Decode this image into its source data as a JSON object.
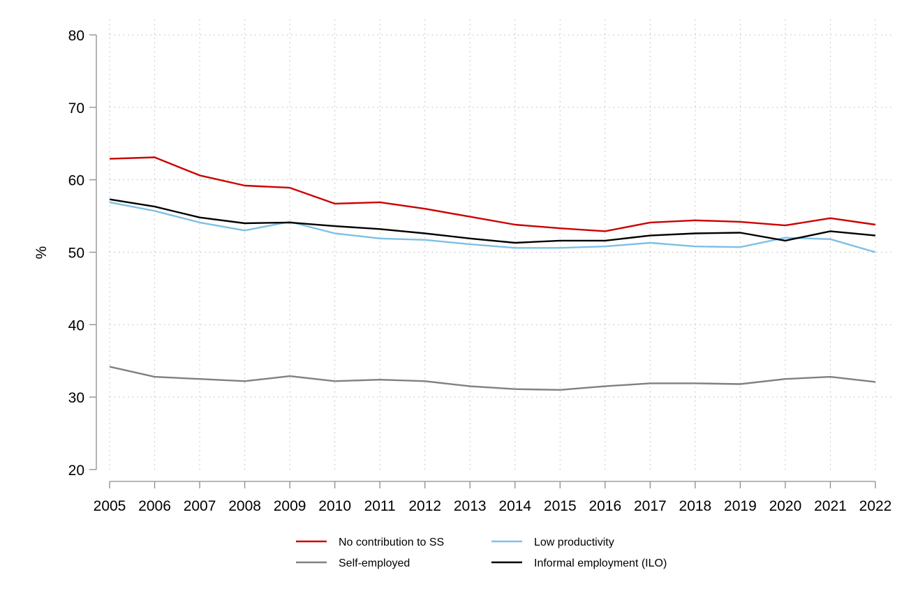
{
  "chart_data": {
    "type": "line",
    "title": "",
    "xlabel": "",
    "ylabel": "%",
    "ylim": [
      20,
      80
    ],
    "yticks": [
      20,
      30,
      40,
      50,
      60,
      70,
      80
    ],
    "grid": true,
    "legend_position": "bottom",
    "x": [
      "2005",
      "2006",
      "2007",
      "2008",
      "2009",
      "2010",
      "2011",
      "2012",
      "2013",
      "2014",
      "2015",
      "2016",
      "2017",
      "2018",
      "2019",
      "2020",
      "2021",
      "2022"
    ],
    "series": [
      {
        "name": "No contribution to SS",
        "color": "#cc0000",
        "values": [
          62.9,
          63.1,
          60.6,
          59.2,
          58.9,
          56.7,
          56.9,
          56.0,
          54.9,
          53.8,
          53.3,
          52.9,
          54.1,
          54.4,
          54.2,
          53.7,
          54.7,
          53.8
        ]
      },
      {
        "name": "Low productivity",
        "color": "#7fbfe6",
        "values": [
          56.9,
          55.7,
          54.1,
          53.0,
          54.2,
          52.6,
          51.9,
          51.7,
          51.1,
          50.6,
          50.6,
          50.8,
          51.3,
          50.8,
          50.7,
          52.0,
          51.8,
          50.0
        ]
      },
      {
        "name": "Self-employed",
        "color": "#808080",
        "values": [
          34.2,
          32.8,
          32.5,
          32.2,
          32.9,
          32.2,
          32.4,
          32.2,
          31.5,
          31.1,
          31.0,
          31.5,
          31.9,
          31.9,
          31.8,
          32.5,
          32.8,
          32.1
        ]
      },
      {
        "name": "Informal employment (ILO)",
        "color": "#000000",
        "values": [
          57.3,
          56.3,
          54.8,
          54.0,
          54.1,
          53.6,
          53.2,
          52.6,
          51.9,
          51.3,
          51.6,
          51.6,
          52.3,
          52.6,
          52.7,
          51.6,
          52.9,
          52.3
        ]
      }
    ]
  }
}
